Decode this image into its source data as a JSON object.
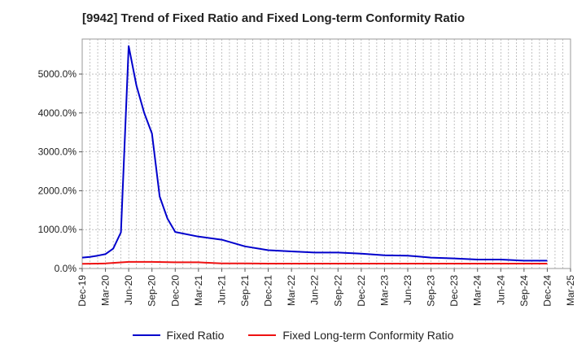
{
  "chart_data": {
    "type": "line",
    "title": "[9942]  Trend of Fixed Ratio and Fixed Long-term Conformity Ratio",
    "xlabel": "",
    "ylabel": "",
    "x_ticks": [
      "Dec-19",
      "Mar-20",
      "Jun-20",
      "Sep-20",
      "Dec-20",
      "Mar-21",
      "Jun-21",
      "Sep-21",
      "Dec-21",
      "Mar-22",
      "Jun-22",
      "Sep-22",
      "Dec-22",
      "Mar-23",
      "Jun-23",
      "Sep-23",
      "Dec-23",
      "Mar-24",
      "Jun-24",
      "Sep-24",
      "Dec-24",
      "Mar-25"
    ],
    "y_ticks": [
      "0.0%",
      "1000.0%",
      "2000.0%",
      "3000.0%",
      "4000.0%",
      "5000.0%"
    ],
    "ylim": [
      0,
      5900
    ],
    "grid": true,
    "legend_position": "bottom",
    "series": [
      {
        "name": "Fixed Ratio",
        "color": "#0000cc",
        "points": [
          [
            "Dec-19",
            280
          ],
          [
            "Jan-20",
            300
          ],
          [
            "Feb-20",
            330
          ],
          [
            "Mar-20",
            370
          ],
          [
            "Apr-20",
            510
          ],
          [
            "May-20",
            930
          ],
          [
            "Jun-20",
            5720
          ],
          [
            "Jul-20",
            4700
          ],
          [
            "Aug-20",
            4000
          ],
          [
            "Sep-20",
            3470
          ],
          [
            "Oct-20",
            1850
          ],
          [
            "Nov-20",
            1280
          ],
          [
            "Dec-20",
            940
          ],
          [
            "Mar-21",
            820
          ],
          [
            "Jun-21",
            740
          ],
          [
            "Sep-21",
            570
          ],
          [
            "Dec-21",
            470
          ],
          [
            "Mar-22",
            440
          ],
          [
            "Jun-22",
            410
          ],
          [
            "Sep-22",
            410
          ],
          [
            "Dec-22",
            380
          ],
          [
            "Mar-23",
            340
          ],
          [
            "Jun-23",
            330
          ],
          [
            "Sep-23",
            280
          ],
          [
            "Dec-23",
            260
          ],
          [
            "Mar-24",
            230
          ],
          [
            "Jun-24",
            230
          ],
          [
            "Sep-24",
            200
          ],
          [
            "Dec-24",
            200
          ]
        ]
      },
      {
        "name": "Fixed Long-term Conformity Ratio",
        "color": "#ee1111",
        "points": [
          [
            "Dec-19",
            120
          ],
          [
            "Mar-20",
            130
          ],
          [
            "Jun-20",
            170
          ],
          [
            "Sep-20",
            170
          ],
          [
            "Dec-20",
            160
          ],
          [
            "Mar-21",
            160
          ],
          [
            "Jun-21",
            130
          ],
          [
            "Sep-21",
            130
          ],
          [
            "Dec-21",
            125
          ],
          [
            "Mar-22",
            125
          ],
          [
            "Jun-22",
            125
          ],
          [
            "Sep-22",
            125
          ],
          [
            "Dec-22",
            125
          ],
          [
            "Mar-23",
            125
          ],
          [
            "Jun-23",
            125
          ],
          [
            "Sep-23",
            125
          ],
          [
            "Dec-23",
            125
          ],
          [
            "Mar-24",
            125
          ],
          [
            "Jun-24",
            125
          ],
          [
            "Sep-24",
            125
          ],
          [
            "Dec-24",
            125
          ]
        ]
      }
    ]
  }
}
